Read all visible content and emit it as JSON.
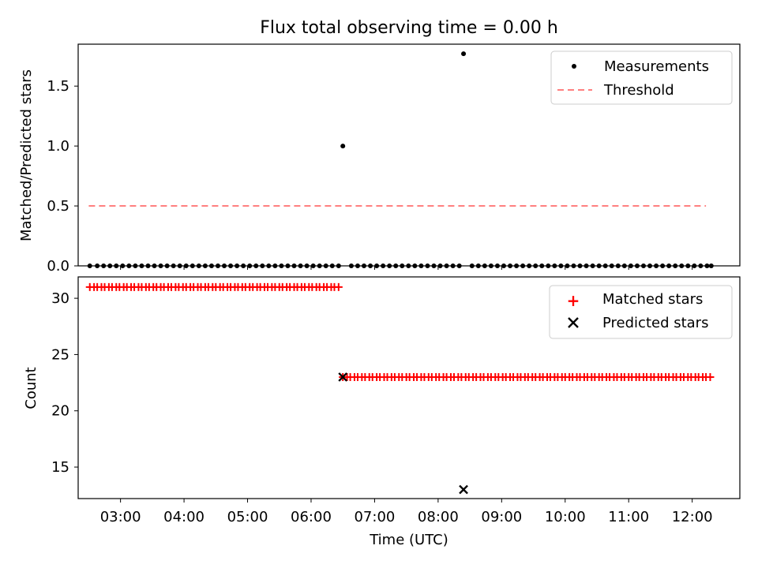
{
  "chart_data": [
    {
      "type": "scatter",
      "title": "Flux total observing time = 0.00 h",
      "xlabel": "",
      "ylabel": "Matched/Predicted stars",
      "xlim": [
        "02:20",
        "12:45"
      ],
      "ylim": [
        0,
        1.85
      ],
      "yticks": [
        0.0,
        0.5,
        1.0,
        1.5
      ],
      "ytick_labels": [
        "0.0",
        "0.5",
        "1.0",
        "1.5"
      ],
      "grid": false,
      "legend_position": "top-right",
      "series": [
        {
          "name": "Measurements",
          "marker": "dot",
          "color": "#000000",
          "x": [
            "02:31",
            "02:38",
            "02:44",
            "02:50",
            "02:56",
            "03:02",
            "03:08",
            "03:14",
            "03:20",
            "03:26",
            "03:32",
            "03:38",
            "03:44",
            "03:50",
            "03:56",
            "04:02",
            "04:08",
            "04:14",
            "04:20",
            "04:26",
            "04:32",
            "04:38",
            "04:44",
            "04:50",
            "04:56",
            "05:02",
            "05:08",
            "05:14",
            "05:20",
            "05:26",
            "05:32",
            "05:38",
            "05:44",
            "05:50",
            "05:56",
            "06:02",
            "06:08",
            "06:14",
            "06:20",
            "06:26",
            "06:30",
            "06:38",
            "06:44",
            "06:50",
            "06:56",
            "07:02",
            "07:08",
            "07:14",
            "07:20",
            "07:26",
            "07:32",
            "07:38",
            "07:44",
            "07:50",
            "07:56",
            "08:02",
            "08:08",
            "08:14",
            "08:20",
            "08:24",
            "08:32",
            "08:38",
            "08:44",
            "08:50",
            "08:56",
            "09:02",
            "09:08",
            "09:14",
            "09:20",
            "09:26",
            "09:32",
            "09:38",
            "09:44",
            "09:50",
            "09:56",
            "10:02",
            "10:08",
            "10:14",
            "10:20",
            "10:26",
            "10:32",
            "10:38",
            "10:44",
            "10:50",
            "10:56",
            "11:02",
            "11:08",
            "11:14",
            "11:20",
            "11:26",
            "11:32",
            "11:38",
            "11:44",
            "11:50",
            "11:56",
            "12:02",
            "12:08",
            "12:14",
            "12:18"
          ],
          "y": [
            0,
            0,
            0,
            0,
            0,
            0,
            0,
            0,
            0,
            0,
            0,
            0,
            0,
            0,
            0,
            0,
            0,
            0,
            0,
            0,
            0,
            0,
            0,
            0,
            0,
            0,
            0,
            0,
            0,
            0,
            0,
            0,
            0,
            0,
            0,
            0,
            0,
            0,
            0,
            0,
            1.0,
            0,
            0,
            0,
            0,
            0,
            0,
            0,
            0,
            0,
            0,
            0,
            0,
            0,
            0,
            0,
            0,
            0,
            0,
            1.77,
            0,
            0,
            0,
            0,
            0,
            0,
            0,
            0,
            0,
            0,
            0,
            0,
            0,
            0,
            0,
            0,
            0,
            0,
            0,
            0,
            0,
            0,
            0,
            0,
            0,
            0,
            0,
            0,
            0,
            0,
            0,
            0,
            0,
            0,
            0,
            0,
            0,
            0,
            0
          ]
        },
        {
          "name": "Threshold",
          "style": "dashed",
          "color": "#ff7f7f",
          "x": [
            "02:30",
            "12:13"
          ],
          "y": [
            0.5,
            0.5
          ]
        }
      ]
    },
    {
      "type": "scatter",
      "xlabel": "Time (UTC)",
      "ylabel": "Count",
      "xlim": [
        "02:20",
        "12:45"
      ],
      "ylim": [
        12.2,
        31.9
      ],
      "yticks": [
        15,
        20,
        25,
        30
      ],
      "ytick_labels": [
        "15",
        "20",
        "25",
        "30"
      ],
      "xticks": [
        "03:00",
        "04:00",
        "05:00",
        "06:00",
        "07:00",
        "08:00",
        "09:00",
        "10:00",
        "11:00",
        "12:00"
      ],
      "grid": false,
      "legend_position": "top-right",
      "series": [
        {
          "name": "Matched stars",
          "marker": "plus",
          "color": "#ff0000",
          "segments": [
            {
              "from": "02:31",
              "to": "06:26",
              "value": 31
            },
            {
              "from": "06:30",
              "to": "12:18",
              "value": 23
            }
          ]
        },
        {
          "name": "Predicted stars",
          "marker": "x",
          "color": "#000000",
          "x": [
            "06:30",
            "08:24"
          ],
          "y": [
            23,
            13
          ]
        }
      ]
    }
  ]
}
